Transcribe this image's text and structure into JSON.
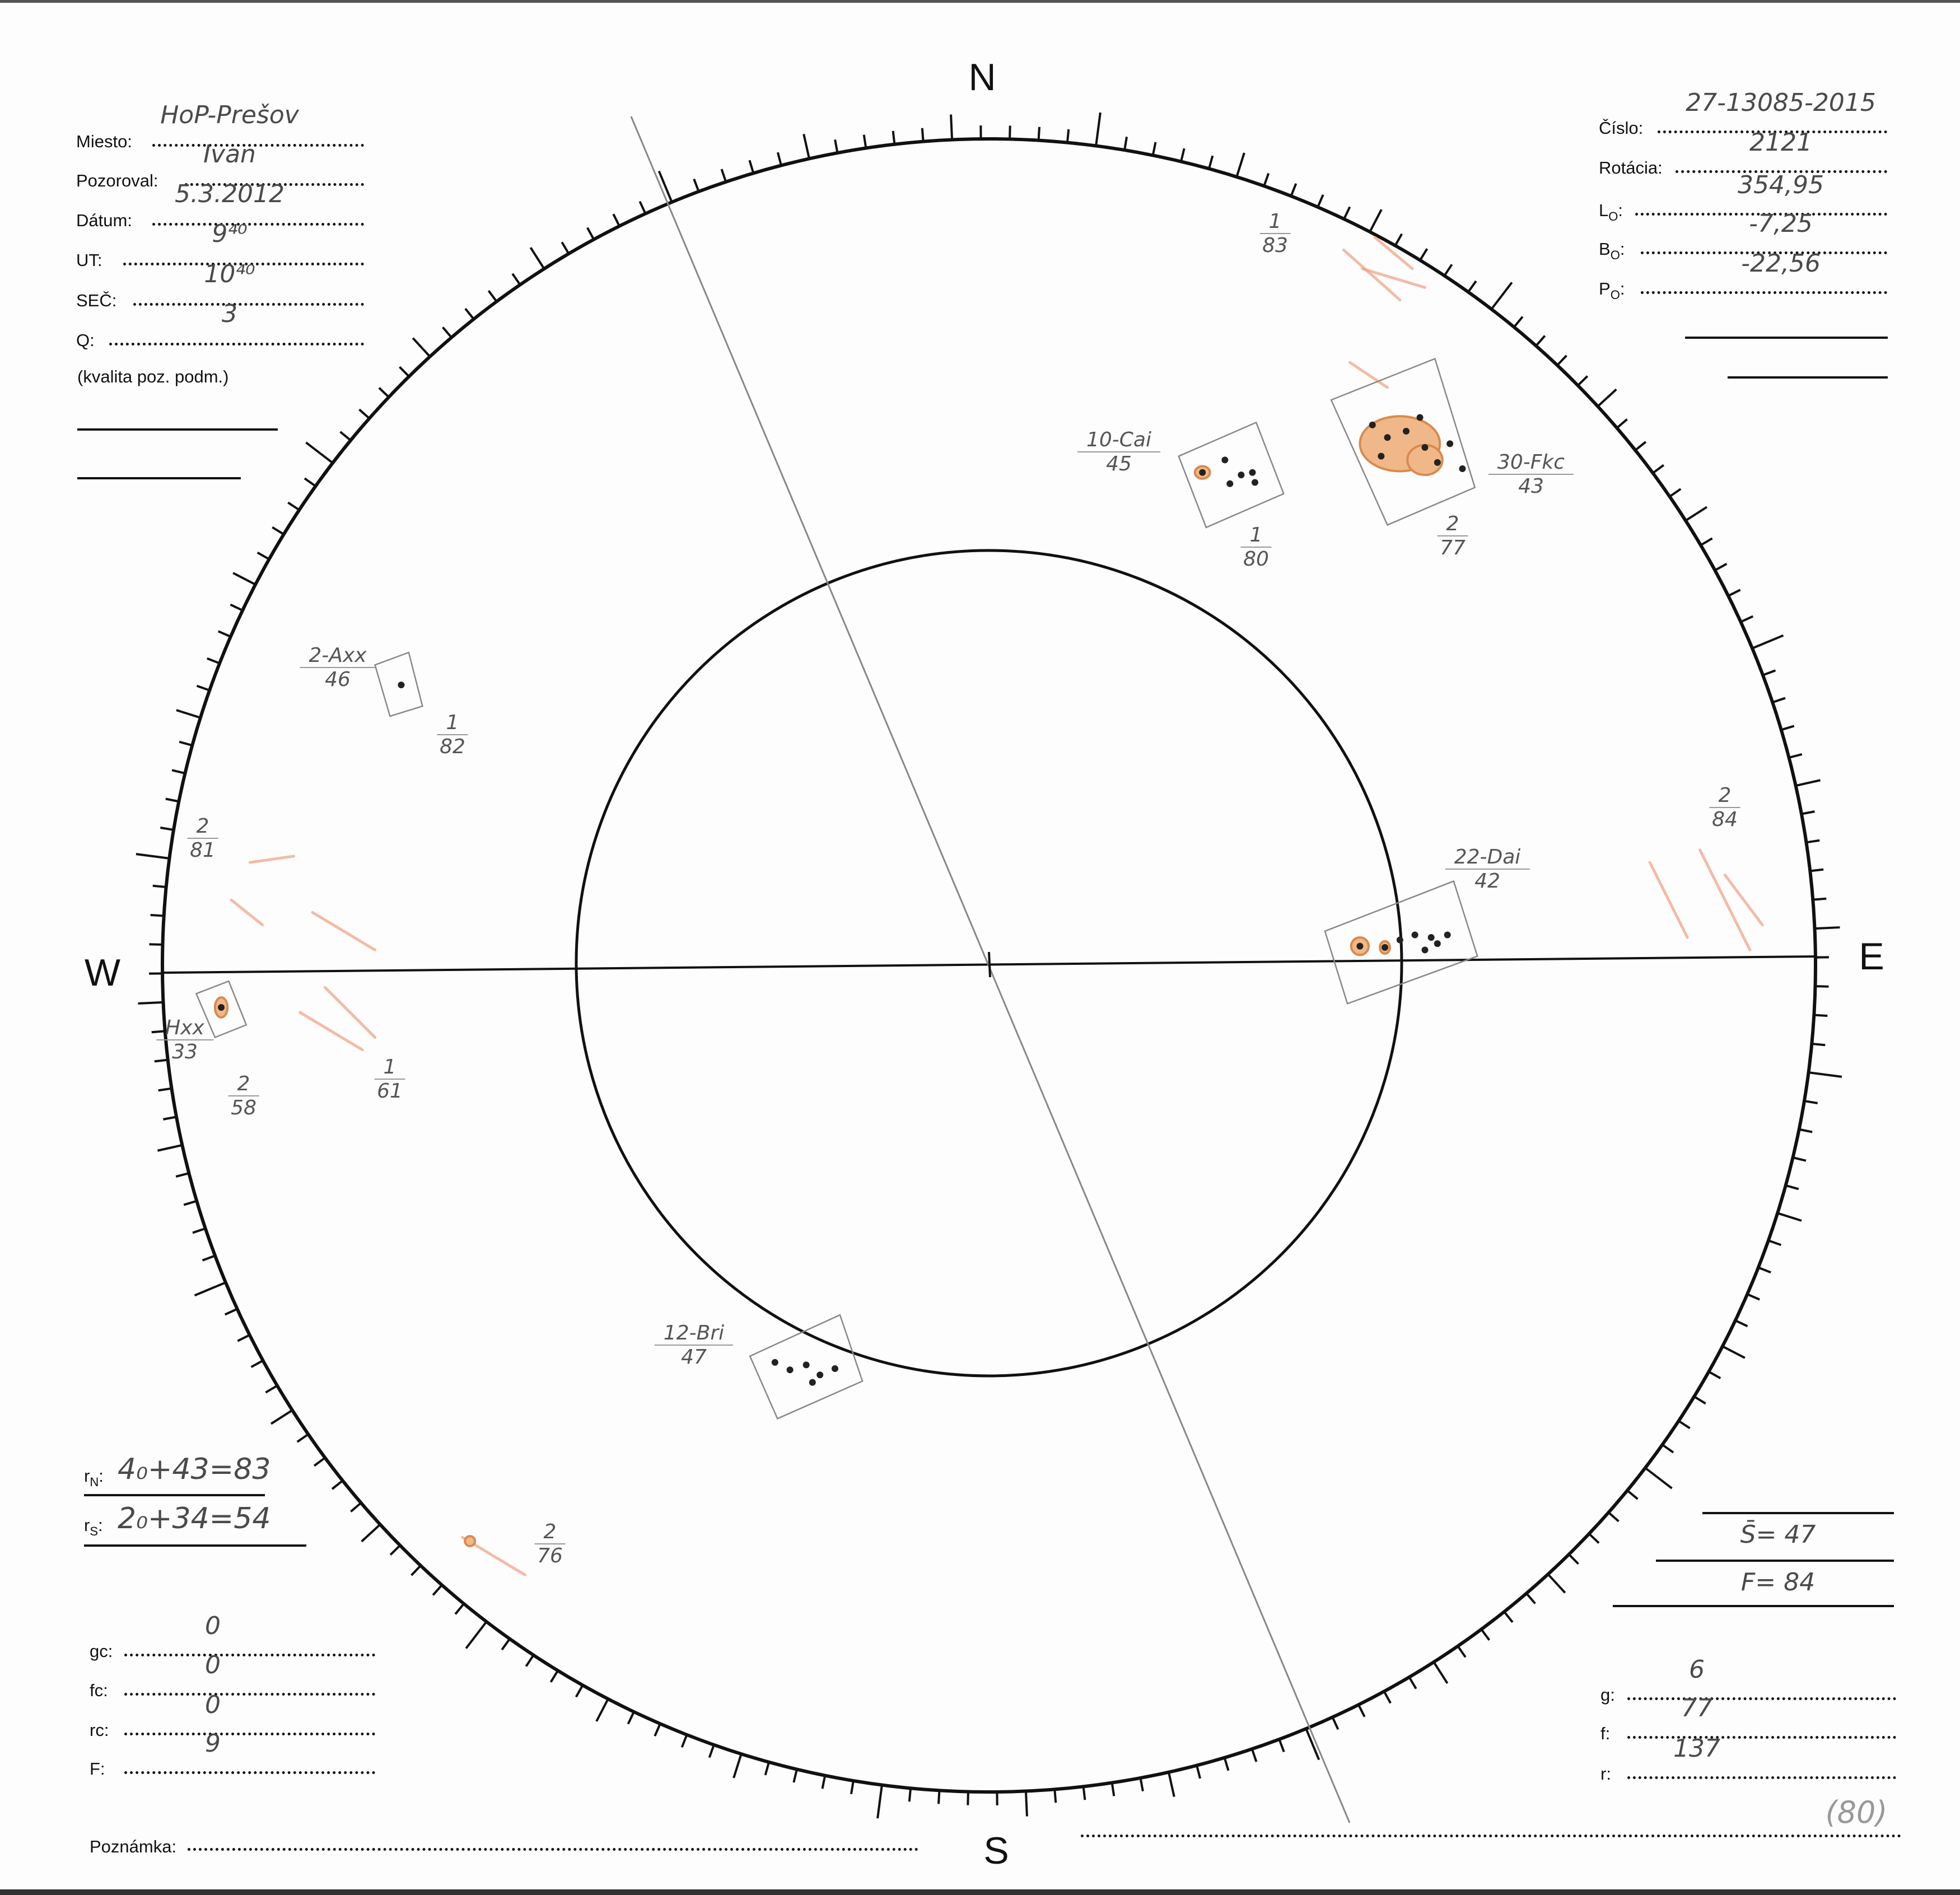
{
  "compass": {
    "north": "N",
    "south": "S",
    "west": "W",
    "east": "E"
  },
  "header_left": {
    "fields": [
      {
        "label": "Miesto:",
        "value": "HoP-Prešov"
      },
      {
        "label": "Pozoroval:",
        "value": "Ivan"
      },
      {
        "label": "Dátum:",
        "value": "5.3.2012"
      },
      {
        "label": "UT:",
        "value": "9⁴⁰"
      },
      {
        "label": "SEČ:",
        "value": "10⁴⁰"
      },
      {
        "label": "Q:",
        "value": "3"
      }
    ],
    "note": "(kvalita poz. podm.)"
  },
  "header_right": {
    "fields": [
      {
        "label": "Číslo:",
        "sub": "",
        "value": "27-13085-2015"
      },
      {
        "label": "Rotácia:",
        "sub": "",
        "value": "2121"
      },
      {
        "label": "L",
        "sub": "O",
        "value": "354,95"
      },
      {
        "label": "B",
        "sub": "O",
        "value": "-7,25"
      },
      {
        "label": "P",
        "sub": "O",
        "value": "-22,56"
      }
    ]
  },
  "relative": {
    "rN_label": "r",
    "rN_sub": "N",
    "rN_value": "4₀+43=83",
    "rS_label": "r",
    "rS_sub": "S",
    "rS_value": "2₀+34=54"
  },
  "counts_left": [
    {
      "label": "gc:",
      "value": "0"
    },
    {
      "label": "fc:",
      "value": "0"
    },
    {
      "label": "rc:",
      "value": "0"
    },
    {
      "label": "F:",
      "value": "9"
    }
  ],
  "totals_right": {
    "s_value": "S̄= 47",
    "f_value": "F= 84"
  },
  "counts_right": [
    {
      "label": "g:",
      "value": "6"
    },
    {
      "label": "f:",
      "value": "77"
    },
    {
      "label": "r:",
      "value": "137"
    }
  ],
  "footer": {
    "note_label": "Poznámka:",
    "circled_value": "(80)"
  },
  "groups": [
    {
      "top": "1",
      "bottom": "83"
    },
    {
      "top": "10-Cai",
      "bottom": "45"
    },
    {
      "top": "1",
      "bottom": "80"
    },
    {
      "top": "30-Fkc",
      "bottom": "43"
    },
    {
      "top": "2",
      "bottom": "77"
    },
    {
      "top": "2-Axx",
      "bottom": "46"
    },
    {
      "top": "1",
      "bottom": "82"
    },
    {
      "top": "2",
      "bottom": "81"
    },
    {
      "top": "Hxx",
      "bottom": "33"
    },
    {
      "top": "2",
      "bottom": "58"
    },
    {
      "top": "1",
      "bottom": "61"
    },
    {
      "top": "22-Dai",
      "bottom": "42"
    },
    {
      "top": "2",
      "bottom": "84"
    },
    {
      "top": "12-Bri",
      "bottom": "47"
    },
    {
      "top": "2",
      "bottom": "76"
    }
  ],
  "colors": {
    "ink": "#111111",
    "pencil": "#4a4a4a",
    "facula": "#f0a080",
    "penumbra": "#d98a4e",
    "umbra": "#222222"
  }
}
